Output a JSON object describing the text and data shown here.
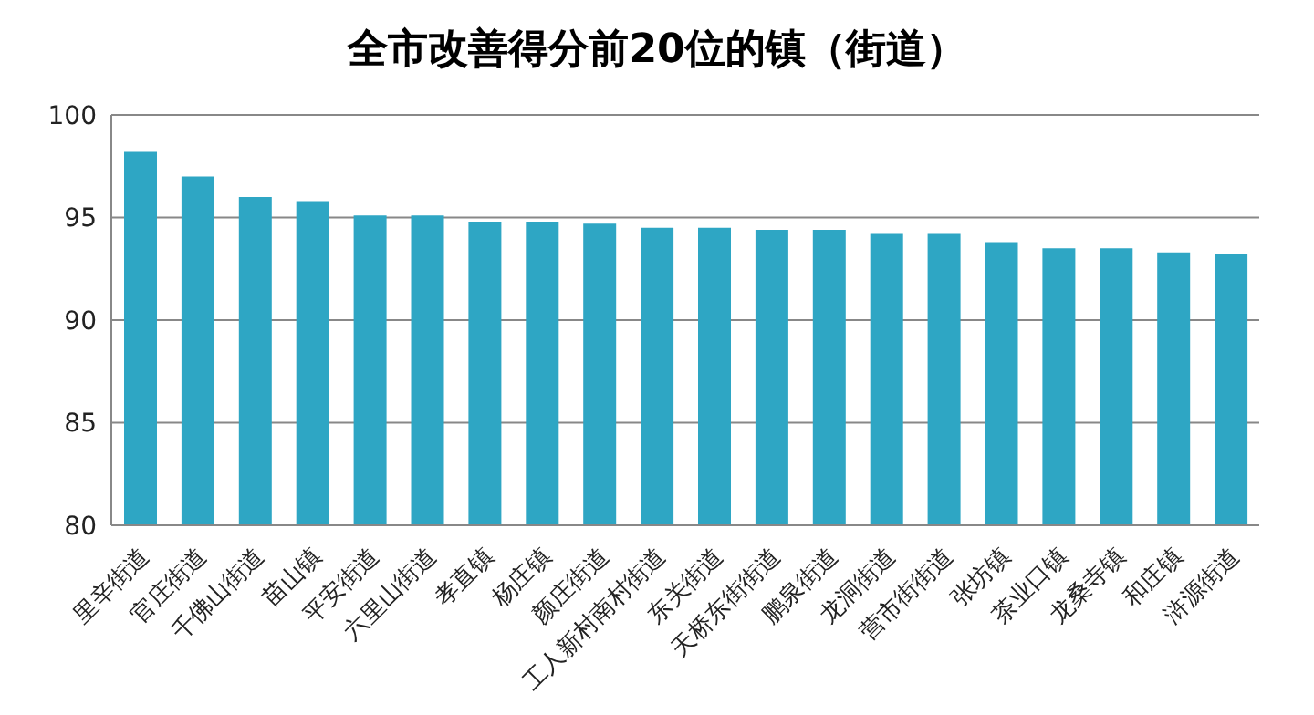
{
  "chart_data": {
    "type": "bar",
    "title": "全市改善得分前20位的镇（街道）",
    "categories": [
      "里辛街道",
      "官庄街道",
      "千佛山街道",
      "苗山镇",
      "平安街道",
      "六里山街道",
      "孝直镇",
      "杨庄镇",
      "颜庄街道",
      "工人新村南村街道",
      "东关街道",
      "天桥东街街道",
      "鹏泉街道",
      "龙洞街道",
      "营市街街道",
      "张坊镇",
      "茶业口镇",
      "龙桑寺镇",
      "和庄镇",
      "浒源街道"
    ],
    "values": [
      98.2,
      97.0,
      96.0,
      95.8,
      95.1,
      95.1,
      94.8,
      94.8,
      94.7,
      94.5,
      94.5,
      94.4,
      94.4,
      94.2,
      94.2,
      93.8,
      93.5,
      93.5,
      93.3,
      93.2
    ],
    "color": "#2ea6c4",
    "ylim": [
      80,
      100
    ],
    "yticks": [
      80,
      85,
      90,
      95,
      100
    ],
    "grid": "y"
  }
}
